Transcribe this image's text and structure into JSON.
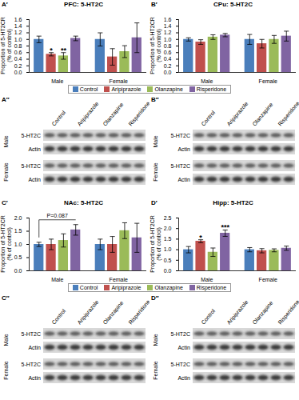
{
  "chart_data": [
    {
      "type": "bar",
      "panel": "A′",
      "title": "PFC: 5-HT2C",
      "y_label": "Proportion of 5-HT2CR (% of control)",
      "categories": [
        "Male",
        "Female"
      ],
      "ylim": [
        0,
        1.6
      ],
      "yticks": [
        0,
        0.2,
        0.4,
        0.6,
        0.8,
        1,
        1.2,
        1.4,
        1.6
      ],
      "legend": "bottom",
      "series": [
        {
          "name": "Control",
          "color": "#4a7ebb",
          "values": [
            1.0,
            1.0
          ],
          "errors": [
            0.1,
            0.2
          ]
        },
        {
          "name": "Aripiprazole",
          "color": "#c0504d",
          "values": [
            0.55,
            0.47
          ],
          "errors": [
            0.05,
            0.25
          ]
        },
        {
          "name": "Olanzapine",
          "color": "#9bbb59",
          "values": [
            0.5,
            0.63
          ],
          "errors": [
            0.1,
            0.18
          ]
        },
        {
          "name": "Risperidone",
          "color": "#8064a2",
          "values": [
            1.03,
            1.05
          ],
          "errors": [
            0.07,
            0.45
          ]
        }
      ],
      "annotations": [
        {
          "text": "*",
          "category": "Male",
          "series": "Aripiprazole"
        },
        {
          "text": "**",
          "category": "Male",
          "series": "Olanzapine"
        }
      ]
    },
    {
      "type": "bar",
      "panel": "B′",
      "title": "CPu: 5-HT2C",
      "y_label": "Proportion of 5-HT2CR (% of control)",
      "categories": [
        "Male",
        "Female"
      ],
      "ylim": [
        0,
        1.6
      ],
      "yticks": [
        0,
        0.2,
        0.4,
        0.6,
        0.8,
        1,
        1.2,
        1.4,
        1.6
      ],
      "series": [
        {
          "name": "Control",
          "color": "#4a7ebb",
          "values": [
            1.0,
            1.0
          ],
          "errors": [
            0.05,
            0.15
          ]
        },
        {
          "name": "Aripiprazole",
          "color": "#c0504d",
          "values": [
            0.92,
            0.87
          ],
          "errors": [
            0.07,
            0.13
          ]
        },
        {
          "name": "Olanzapine",
          "color": "#9bbb59",
          "values": [
            1.07,
            1.0
          ],
          "errors": [
            0.07,
            0.12
          ]
        },
        {
          "name": "Risperidone",
          "color": "#8064a2",
          "values": [
            1.13,
            1.1
          ],
          "errors": [
            0.05,
            0.15
          ]
        }
      ],
      "annotations": []
    },
    {
      "type": "bar",
      "panel": "C′",
      "title": "NAc: 5-HT2C",
      "y_label": "Proportion of 5-HT2CR (% of control)",
      "categories": [
        "Male",
        "Female"
      ],
      "ylim": [
        0,
        2
      ],
      "yticks": [
        0,
        0.5,
        1,
        1.5,
        2
      ],
      "legend": "bottom",
      "series": [
        {
          "name": "Control",
          "color": "#4a7ebb",
          "values": [
            1.0,
            1.0
          ],
          "errors": [
            0.08,
            0.2
          ]
        },
        {
          "name": "Aripiprazole",
          "color": "#c0504d",
          "values": [
            1.0,
            1.0
          ],
          "errors": [
            0.2,
            0.3
          ]
        },
        {
          "name": "Olanzapine",
          "color": "#9bbb59",
          "values": [
            1.15,
            1.52
          ],
          "errors": [
            0.25,
            0.3
          ]
        },
        {
          "name": "Risperidone",
          "color": "#8064a2",
          "values": [
            1.55,
            1.25
          ],
          "errors": [
            0.2,
            0.55
          ]
        }
      ],
      "annotations": [
        {
          "text": "P=0.087",
          "category": "Male",
          "from": "Control",
          "to": "Risperidone"
        }
      ]
    },
    {
      "type": "bar",
      "panel": "D′",
      "title": "Hipp: 5-HT2C",
      "y_label": "Proportion of 5-HT2CR (% of control)",
      "categories": [
        "Male",
        "Female"
      ],
      "ylim": [
        0,
        2.5
      ],
      "yticks": [
        0,
        0.5,
        1,
        1.5,
        2,
        2.5
      ],
      "series": [
        {
          "name": "Control",
          "color": "#4a7ebb",
          "values": [
            1.0,
            1.0
          ],
          "errors": [
            0.15,
            0.1
          ]
        },
        {
          "name": "Aripiprazole",
          "color": "#c0504d",
          "values": [
            1.4,
            0.95
          ],
          "errors": [
            0.07,
            0.1
          ]
        },
        {
          "name": "Olanzapine",
          "color": "#9bbb59",
          "values": [
            0.88,
            0.97
          ],
          "errors": [
            0.2,
            0.07
          ]
        },
        {
          "name": "Risperidone",
          "color": "#8064a2",
          "values": [
            1.78,
            1.07
          ],
          "errors": [
            0.15,
            0.1
          ]
        }
      ],
      "annotations": [
        {
          "text": "*",
          "category": "Male",
          "series": "Aripiprazole"
        },
        {
          "text": "***",
          "category": "Male",
          "series": "Risperidone"
        }
      ]
    }
  ],
  "blots": [
    {
      "panel": "A″",
      "lanes": [
        "Control",
        "Aripiprazole",
        "Olanzapine",
        "Risperidone"
      ],
      "groups": [
        {
          "name": "Male",
          "bands": [
            "5-HT2C",
            "Actin"
          ]
        },
        {
          "name": "Female",
          "bands": [
            "5-HT2C",
            "Actin"
          ]
        }
      ]
    },
    {
      "panel": "B″",
      "lanes": [
        "Control",
        "Aripiprazole",
        "Olanzapine",
        "Risperidone"
      ],
      "groups": [
        {
          "name": "Male",
          "bands": [
            "5-HT2C",
            "Actin"
          ]
        },
        {
          "name": "Female",
          "bands": [
            "5-HT2C",
            "Actin"
          ]
        }
      ]
    },
    {
      "panel": "C″",
      "lanes": [
        "Control",
        "Aripiprazole",
        "Olanzapine",
        "Risperidone"
      ],
      "groups": [
        {
          "name": "Male",
          "bands": [
            "5-HT2C",
            "Actin"
          ]
        },
        {
          "name": "Female",
          "bands": [
            "5-HT2C",
            "Actin"
          ]
        }
      ]
    },
    {
      "panel": "D″",
      "lanes": [
        "Control",
        "Aripiprazole",
        "Olanzapine",
        "Risperidone"
      ],
      "groups": [
        {
          "name": "Male",
          "bands": [
            "5-HT2C",
            "Actin"
          ]
        },
        {
          "name": "Female",
          "bands": [
            "5-HT2C",
            "Actin"
          ]
        }
      ]
    }
  ]
}
